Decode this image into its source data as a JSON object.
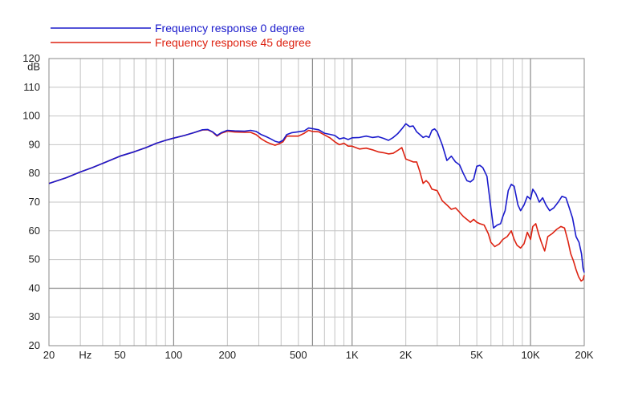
{
  "chart_data": {
    "type": "line",
    "title": "",
    "xlabel": "Hz",
    "ylabel": "dB",
    "x_scale": "log",
    "xlim": [
      20,
      20000
    ],
    "ylim": [
      20,
      120
    ],
    "grid": true,
    "legend_position": "top-left",
    "x_ticks": [
      {
        "value": 20,
        "label": "20"
      },
      {
        "value": 50,
        "label": "50"
      },
      {
        "value": 100,
        "label": "100"
      },
      {
        "value": 200,
        "label": "200"
      },
      {
        "value": 500,
        "label": "500"
      },
      {
        "value": 1000,
        "label": "1K"
      },
      {
        "value": 2000,
        "label": "2K"
      },
      {
        "value": 5000,
        "label": "5K"
      },
      {
        "value": 10000,
        "label": "10K"
      },
      {
        "value": 20000,
        "label": "20K"
      }
    ],
    "y_ticks": [
      20,
      30,
      40,
      50,
      60,
      70,
      80,
      90,
      100,
      110,
      120
    ],
    "series": [
      {
        "name": "Frequency response 0 degree",
        "color": "#1a1acc",
        "points": [
          [
            20,
            76.5
          ],
          [
            25,
            78.5
          ],
          [
            30,
            80.5
          ],
          [
            35,
            82
          ],
          [
            40,
            83.5
          ],
          [
            50,
            86
          ],
          [
            60,
            87.5
          ],
          [
            70,
            89
          ],
          [
            80,
            90.5
          ],
          [
            90,
            91.5
          ],
          [
            100,
            92.3
          ],
          [
            115,
            93.2
          ],
          [
            130,
            94.2
          ],
          [
            145,
            95.2
          ],
          [
            155,
            95.3
          ],
          [
            165,
            94.5
          ],
          [
            175,
            93.2
          ],
          [
            185,
            94.2
          ],
          [
            200,
            95
          ],
          [
            220,
            94.8
          ],
          [
            250,
            94.7
          ],
          [
            270,
            95
          ],
          [
            290,
            94.6
          ],
          [
            310,
            93.5
          ],
          [
            330,
            92.8
          ],
          [
            350,
            92
          ],
          [
            370,
            91.2
          ],
          [
            390,
            90.8
          ],
          [
            410,
            91.5
          ],
          [
            430,
            93.5
          ],
          [
            460,
            94.2
          ],
          [
            500,
            94.5
          ],
          [
            540,
            94.8
          ],
          [
            570,
            95.8
          ],
          [
            600,
            95.6
          ],
          [
            650,
            95.2
          ],
          [
            700,
            94
          ],
          [
            750,
            93.6
          ],
          [
            800,
            93.2
          ],
          [
            850,
            92
          ],
          [
            900,
            92.4
          ],
          [
            950,
            91.8
          ],
          [
            1000,
            92.4
          ],
          [
            1100,
            92.5
          ],
          [
            1200,
            93
          ],
          [
            1300,
            92.5
          ],
          [
            1400,
            92.8
          ],
          [
            1500,
            92.2
          ],
          [
            1600,
            91.5
          ],
          [
            1700,
            92.5
          ],
          [
            1800,
            93.8
          ],
          [
            1900,
            95.5
          ],
          [
            2000,
            97.3
          ],
          [
            2100,
            96.3
          ],
          [
            2200,
            96.5
          ],
          [
            2300,
            94.5
          ],
          [
            2400,
            93.5
          ],
          [
            2500,
            92.5
          ],
          [
            2600,
            93
          ],
          [
            2700,
            92.5
          ],
          [
            2800,
            95
          ],
          [
            2900,
            95.5
          ],
          [
            3000,
            94.5
          ],
          [
            3200,
            90
          ],
          [
            3400,
            84.5
          ],
          [
            3600,
            86
          ],
          [
            3800,
            84
          ],
          [
            4000,
            83
          ],
          [
            4200,
            80
          ],
          [
            4400,
            77.5
          ],
          [
            4600,
            77
          ],
          [
            4800,
            78
          ],
          [
            5000,
            82.5
          ],
          [
            5200,
            82.8
          ],
          [
            5400,
            82
          ],
          [
            5700,
            79
          ],
          [
            6000,
            68
          ],
          [
            6200,
            61
          ],
          [
            6500,
            62
          ],
          [
            6800,
            62.5
          ],
          [
            7000,
            65
          ],
          [
            7200,
            67
          ],
          [
            7500,
            74
          ],
          [
            7800,
            76.2
          ],
          [
            8100,
            75.5
          ],
          [
            8500,
            69
          ],
          [
            8800,
            67
          ],
          [
            9200,
            69
          ],
          [
            9600,
            72
          ],
          [
            10000,
            71
          ],
          [
            10300,
            74.5
          ],
          [
            10700,
            73
          ],
          [
            11200,
            70
          ],
          [
            11700,
            71.5
          ],
          [
            12200,
            69
          ],
          [
            12800,
            67
          ],
          [
            13500,
            68
          ],
          [
            14300,
            70
          ],
          [
            15000,
            72
          ],
          [
            15800,
            71.5
          ],
          [
            16500,
            68
          ],
          [
            17200,
            64.5
          ],
          [
            18000,
            58
          ],
          [
            18700,
            56
          ],
          [
            19300,
            52
          ],
          [
            19700,
            47
          ],
          [
            20000,
            45.5
          ]
        ]
      },
      {
        "name": "Frequency response 45 degree",
        "color": "#dd2211",
        "points": [
          [
            20,
            76.5
          ],
          [
            25,
            78.5
          ],
          [
            30,
            80.5
          ],
          [
            35,
            82
          ],
          [
            40,
            83.5
          ],
          [
            50,
            86
          ],
          [
            60,
            87.5
          ],
          [
            70,
            89
          ],
          [
            80,
            90.5
          ],
          [
            90,
            91.5
          ],
          [
            100,
            92.3
          ],
          [
            115,
            93.2
          ],
          [
            130,
            94.2
          ],
          [
            145,
            95.1
          ],
          [
            155,
            95.2
          ],
          [
            165,
            94.4
          ],
          [
            175,
            93
          ],
          [
            185,
            94
          ],
          [
            200,
            94.7
          ],
          [
            220,
            94.4
          ],
          [
            250,
            94.3
          ],
          [
            270,
            94.3
          ],
          [
            290,
            93.5
          ],
          [
            310,
            92
          ],
          [
            330,
            91
          ],
          [
            350,
            90.3
          ],
          [
            370,
            89.8
          ],
          [
            390,
            90.3
          ],
          [
            410,
            91
          ],
          [
            430,
            93
          ],
          [
            460,
            93
          ],
          [
            500,
            93
          ],
          [
            540,
            94
          ],
          [
            570,
            95
          ],
          [
            600,
            94.6
          ],
          [
            650,
            94.5
          ],
          [
            700,
            93.4
          ],
          [
            750,
            92.4
          ],
          [
            800,
            91
          ],
          [
            850,
            90
          ],
          [
            900,
            90.5
          ],
          [
            950,
            89.5
          ],
          [
            1000,
            89.5
          ],
          [
            1100,
            88.5
          ],
          [
            1200,
            88.8
          ],
          [
            1300,
            88.2
          ],
          [
            1400,
            87.5
          ],
          [
            1500,
            87.2
          ],
          [
            1600,
            86.8
          ],
          [
            1700,
            87
          ],
          [
            1800,
            88
          ],
          [
            1900,
            89
          ],
          [
            2000,
            85
          ],
          [
            2100,
            84.5
          ],
          [
            2200,
            84
          ],
          [
            2300,
            84
          ],
          [
            2400,
            80.5
          ],
          [
            2500,
            76.5
          ],
          [
            2600,
            77.5
          ],
          [
            2700,
            76.5
          ],
          [
            2800,
            74.5
          ],
          [
            3000,
            74
          ],
          [
            3200,
            70.5
          ],
          [
            3400,
            69
          ],
          [
            3600,
            67.5
          ],
          [
            3800,
            68
          ],
          [
            4000,
            66.5
          ],
          [
            4200,
            65
          ],
          [
            4400,
            64
          ],
          [
            4600,
            63
          ],
          [
            4800,
            64
          ],
          [
            5000,
            63
          ],
          [
            5200,
            62.5
          ],
          [
            5500,
            62
          ],
          [
            5800,
            59
          ],
          [
            6000,
            56
          ],
          [
            6300,
            54.5
          ],
          [
            6700,
            55.5
          ],
          [
            7000,
            57
          ],
          [
            7400,
            58
          ],
          [
            7800,
            60
          ],
          [
            8100,
            57
          ],
          [
            8400,
            55
          ],
          [
            8800,
            54
          ],
          [
            9200,
            55.5
          ],
          [
            9600,
            59.5
          ],
          [
            10000,
            57
          ],
          [
            10300,
            61.5
          ],
          [
            10700,
            62.5
          ],
          [
            11100,
            59
          ],
          [
            11500,
            56
          ],
          [
            12000,
            53
          ],
          [
            12500,
            58
          ],
          [
            13200,
            59
          ],
          [
            14000,
            60.5
          ],
          [
            14800,
            61.5
          ],
          [
            15500,
            61
          ],
          [
            16200,
            56.5
          ],
          [
            16800,
            52
          ],
          [
            17400,
            49.5
          ],
          [
            18000,
            46.5
          ],
          [
            18600,
            44
          ],
          [
            19200,
            42.5
          ],
          [
            19700,
            43
          ],
          [
            20000,
            44.5
          ]
        ]
      }
    ]
  }
}
